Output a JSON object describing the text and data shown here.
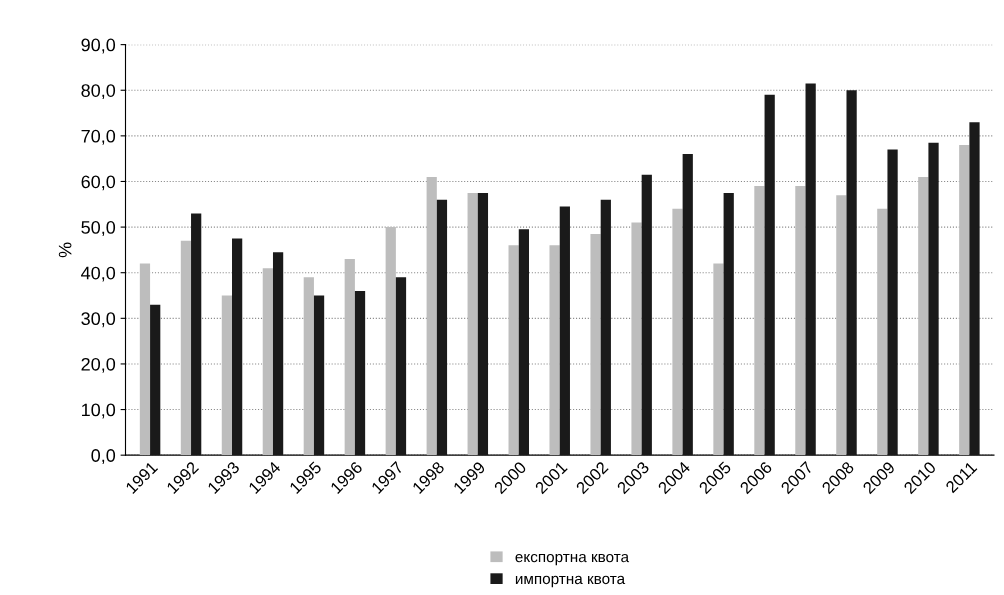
{
  "chart_data": {
    "type": "bar",
    "ylabel": "%",
    "categories": [
      "1991",
      "1992",
      "1993",
      "1994",
      "1995",
      "1996",
      "1997",
      "1998",
      "1999",
      "2000",
      "2001",
      "2002",
      "2003",
      "2004",
      "2005",
      "2006",
      "2007",
      "2008",
      "2009",
      "2010",
      "2011"
    ],
    "series": [
      {
        "name": "експортна квота",
        "color": "#bdbdbd",
        "values": [
          42,
          47,
          35,
          41,
          39,
          43,
          50,
          61,
          57.5,
          46,
          46,
          48.5,
          51,
          54,
          42,
          59,
          59,
          57,
          54,
          61,
          68
        ]
      },
      {
        "name": "импортна квота",
        "color": "#1a1a1a",
        "values": [
          33,
          53,
          47.5,
          44.5,
          35,
          36,
          39,
          56,
          57.5,
          49.5,
          54.5,
          56,
          61.5,
          66,
          57.5,
          79,
          81.5,
          80,
          67,
          68.5,
          73
        ]
      }
    ],
    "ylim": [
      0,
      90
    ],
    "yticks": [
      {
        "value": 0,
        "label": "0,0"
      },
      {
        "value": 10,
        "label": "10,0"
      },
      {
        "value": 20,
        "label": "20,0"
      },
      {
        "value": 30,
        "label": "30,0"
      },
      {
        "value": 40,
        "label": "40,0"
      },
      {
        "value": 50,
        "label": "50,0"
      },
      {
        "value": 60,
        "label": "60,0"
      },
      {
        "value": 70,
        "label": "70,0"
      },
      {
        "value": 80,
        "label": "80,0"
      },
      {
        "value": 90,
        "label": "90,0"
      }
    ],
    "grid": "y",
    "legend": "bottom"
  }
}
